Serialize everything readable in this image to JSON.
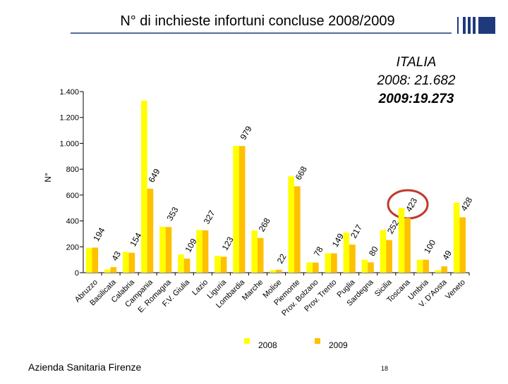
{
  "chart_data": {
    "type": "bar",
    "title": "N° di inchieste infortuni concluse 2008/2009",
    "ylabel": "N°",
    "annotations": [
      "ITALIA",
      "2008: 21.682",
      "2009:19.273"
    ],
    "footer": "Azienda Sanitaria Firenze",
    "page_number": "18",
    "categories": [
      "Abruzzo",
      "Basilicata",
      "Calabria",
      "Campania",
      "E. Romagna",
      "F.V. Giulia",
      "Lazio",
      "Liguria",
      "Lombardia",
      "Marche",
      "Molise",
      "Piemonte",
      "Prov. Bolzano",
      "Prov. Trento",
      "Puglia",
      "Sardegna",
      "Sicilia",
      "Toscana",
      "Umbria",
      "V. D'Aosta",
      "Veneto"
    ],
    "series": [
      {
        "name": "2008",
        "color": "#ffff00",
        "values": [
          190,
          25,
          160,
          1330,
          355,
          140,
          330,
          130,
          980,
          325,
          20,
          745,
          80,
          150,
          310,
          100,
          330,
          500,
          100,
          20,
          540
        ]
      },
      {
        "name": "2009",
        "color": "#ffc000",
        "values": [
          194,
          43,
          154,
          649,
          353,
          109,
          327,
          123,
          979,
          268,
          22,
          668,
          78,
          149,
          217,
          80,
          252,
          423,
          100,
          49,
          428
        ]
      }
    ],
    "ylim": [
      0,
      1400
    ],
    "yticks": [
      0,
      200,
      400,
      600,
      800,
      {
        "value": 1000,
        "label": "1.000"
      },
      {
        "value": 1200,
        "label": "1.200"
      },
      {
        "value": 1400,
        "label": "1.400"
      }
    ],
    "legend": "bottom"
  }
}
